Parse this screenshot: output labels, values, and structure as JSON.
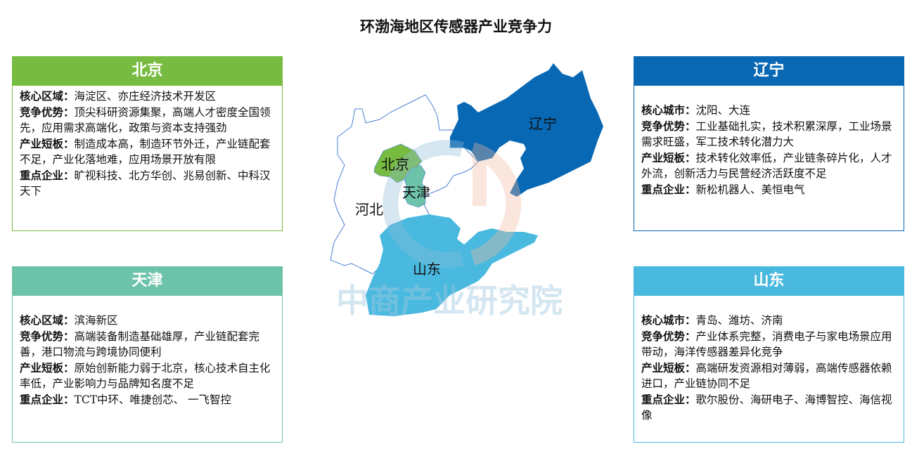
{
  "title": "环渤海地区传感器产业竞争力",
  "colors": {
    "beijing": "#77bc41",
    "tianjin": "#6dc3a9",
    "liaoning": "#0868b4",
    "shandong": "#49b9df",
    "hebei_outline": "#4a7fd6"
  },
  "map": {
    "labels": {
      "beijing": "北京",
      "tianjin": "天津",
      "hebei": "河北",
      "liaoning": "辽宁",
      "shandong": "山东"
    },
    "watermark": "中商产业研究院"
  },
  "panels": {
    "beijing": {
      "title": "北京",
      "rows": [
        {
          "label": "核心区域：",
          "text": "海淀区、亦庄经济技术开发区"
        },
        {
          "label": "竞争优势：",
          "text": "顶尖科研资源集聚，高端人才密度全国领先，应用需求高端化，政策与资本支持强劲"
        },
        {
          "label": "产业短板：",
          "text": "制造成本高，制造环节外迁，产业链配套不足，产业化落地难，应用场景开放有限"
        },
        {
          "label": "重点企业：",
          "text": "旷视科技、北方华创、兆易创新、中科汉天下"
        }
      ]
    },
    "liaoning": {
      "title": "辽宁",
      "rows": [
        {
          "label": "核心城市：",
          "text": "沈阳、大连"
        },
        {
          "label": "竞争优势：",
          "text": "工业基础扎实，技术积累深厚，工业场景需求旺盛，军工技术转化潜力大"
        },
        {
          "label": "产业短板：",
          "text": "技术转化效率低，产业链条碎片化，人才外流，创新活力与民营经济活跃度不足"
        },
        {
          "label": "重点企业：",
          "text": "新松机器人、美恒电气"
        }
      ]
    },
    "tianjin": {
      "title": "天津",
      "rows": [
        {
          "label": "核心区域：",
          "text": "滨海新区"
        },
        {
          "label": "竞争优势：",
          "text": "高端装备制造基础雄厚，产业链配套完善，港口物流与跨境协同便利"
        },
        {
          "label": "产业短板：",
          "text": "原始创新能力弱于北京，核心技术自主化率低，产业影响力与品牌知名度不足"
        },
        {
          "label": "重点企业：",
          "text": "TCT中环、唯捷创芯、 一飞智控"
        }
      ]
    },
    "shandong": {
      "title": "山东",
      "rows": [
        {
          "label": "核心城市：",
          "text": "青岛、潍坊、济南"
        },
        {
          "label": "竞争优势：",
          "text": "产业体系完整，消费电子与家电场景应用带动，海洋传感器差异化竞争"
        },
        {
          "label": "产业短板：",
          "text": "高端研发资源相对薄弱，高端传感器依赖进口，产业链协同不足"
        },
        {
          "label": "重点企业：",
          "text": "歌尔股份、海研电子、海博智控、海信视像"
        }
      ]
    }
  }
}
